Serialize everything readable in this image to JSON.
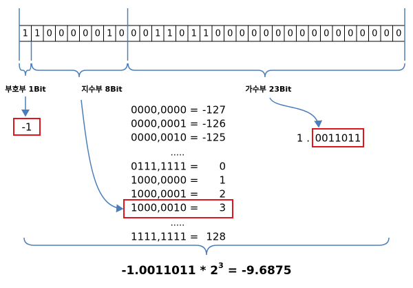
{
  "bits": [
    "1",
    "1",
    "0",
    "0",
    "0",
    "0",
    "0",
    "1",
    "0",
    "0",
    "0",
    "1",
    "1",
    "0",
    "1",
    "1",
    "0",
    "0",
    "0",
    "0",
    "0",
    "0",
    "0",
    "0",
    "0",
    "0",
    "0",
    "0",
    "0",
    "0",
    "0",
    "0"
  ],
  "labels": {
    "sign": "부호부 1Bit",
    "exponent": "지수부 8Bit",
    "mantissa": "가수부 23Bit"
  },
  "sign_value": "-1",
  "mantissa_prefix": "1 .",
  "mantissa_value": "0011011",
  "exponent_table": [
    [
      "0000,0000",
      "=",
      "-127"
    ],
    [
      "0000,0001",
      "=",
      "-126"
    ],
    [
      "0000,0010",
      "=",
      "-125"
    ],
    [
      "....."
    ],
    [
      "0111,1111",
      "=",
      "0"
    ],
    [
      "1000,0000",
      "=",
      "1"
    ],
    [
      "1000,0001",
      "=",
      "2"
    ],
    [
      "1000,0010",
      "=",
      "3"
    ],
    [
      "....."
    ],
    [
      "1111,1111",
      "=",
      "128"
    ]
  ],
  "formula": {
    "base": "-1.0011011 * 2",
    "exponent": "3",
    "result": " = -9.6875"
  }
}
